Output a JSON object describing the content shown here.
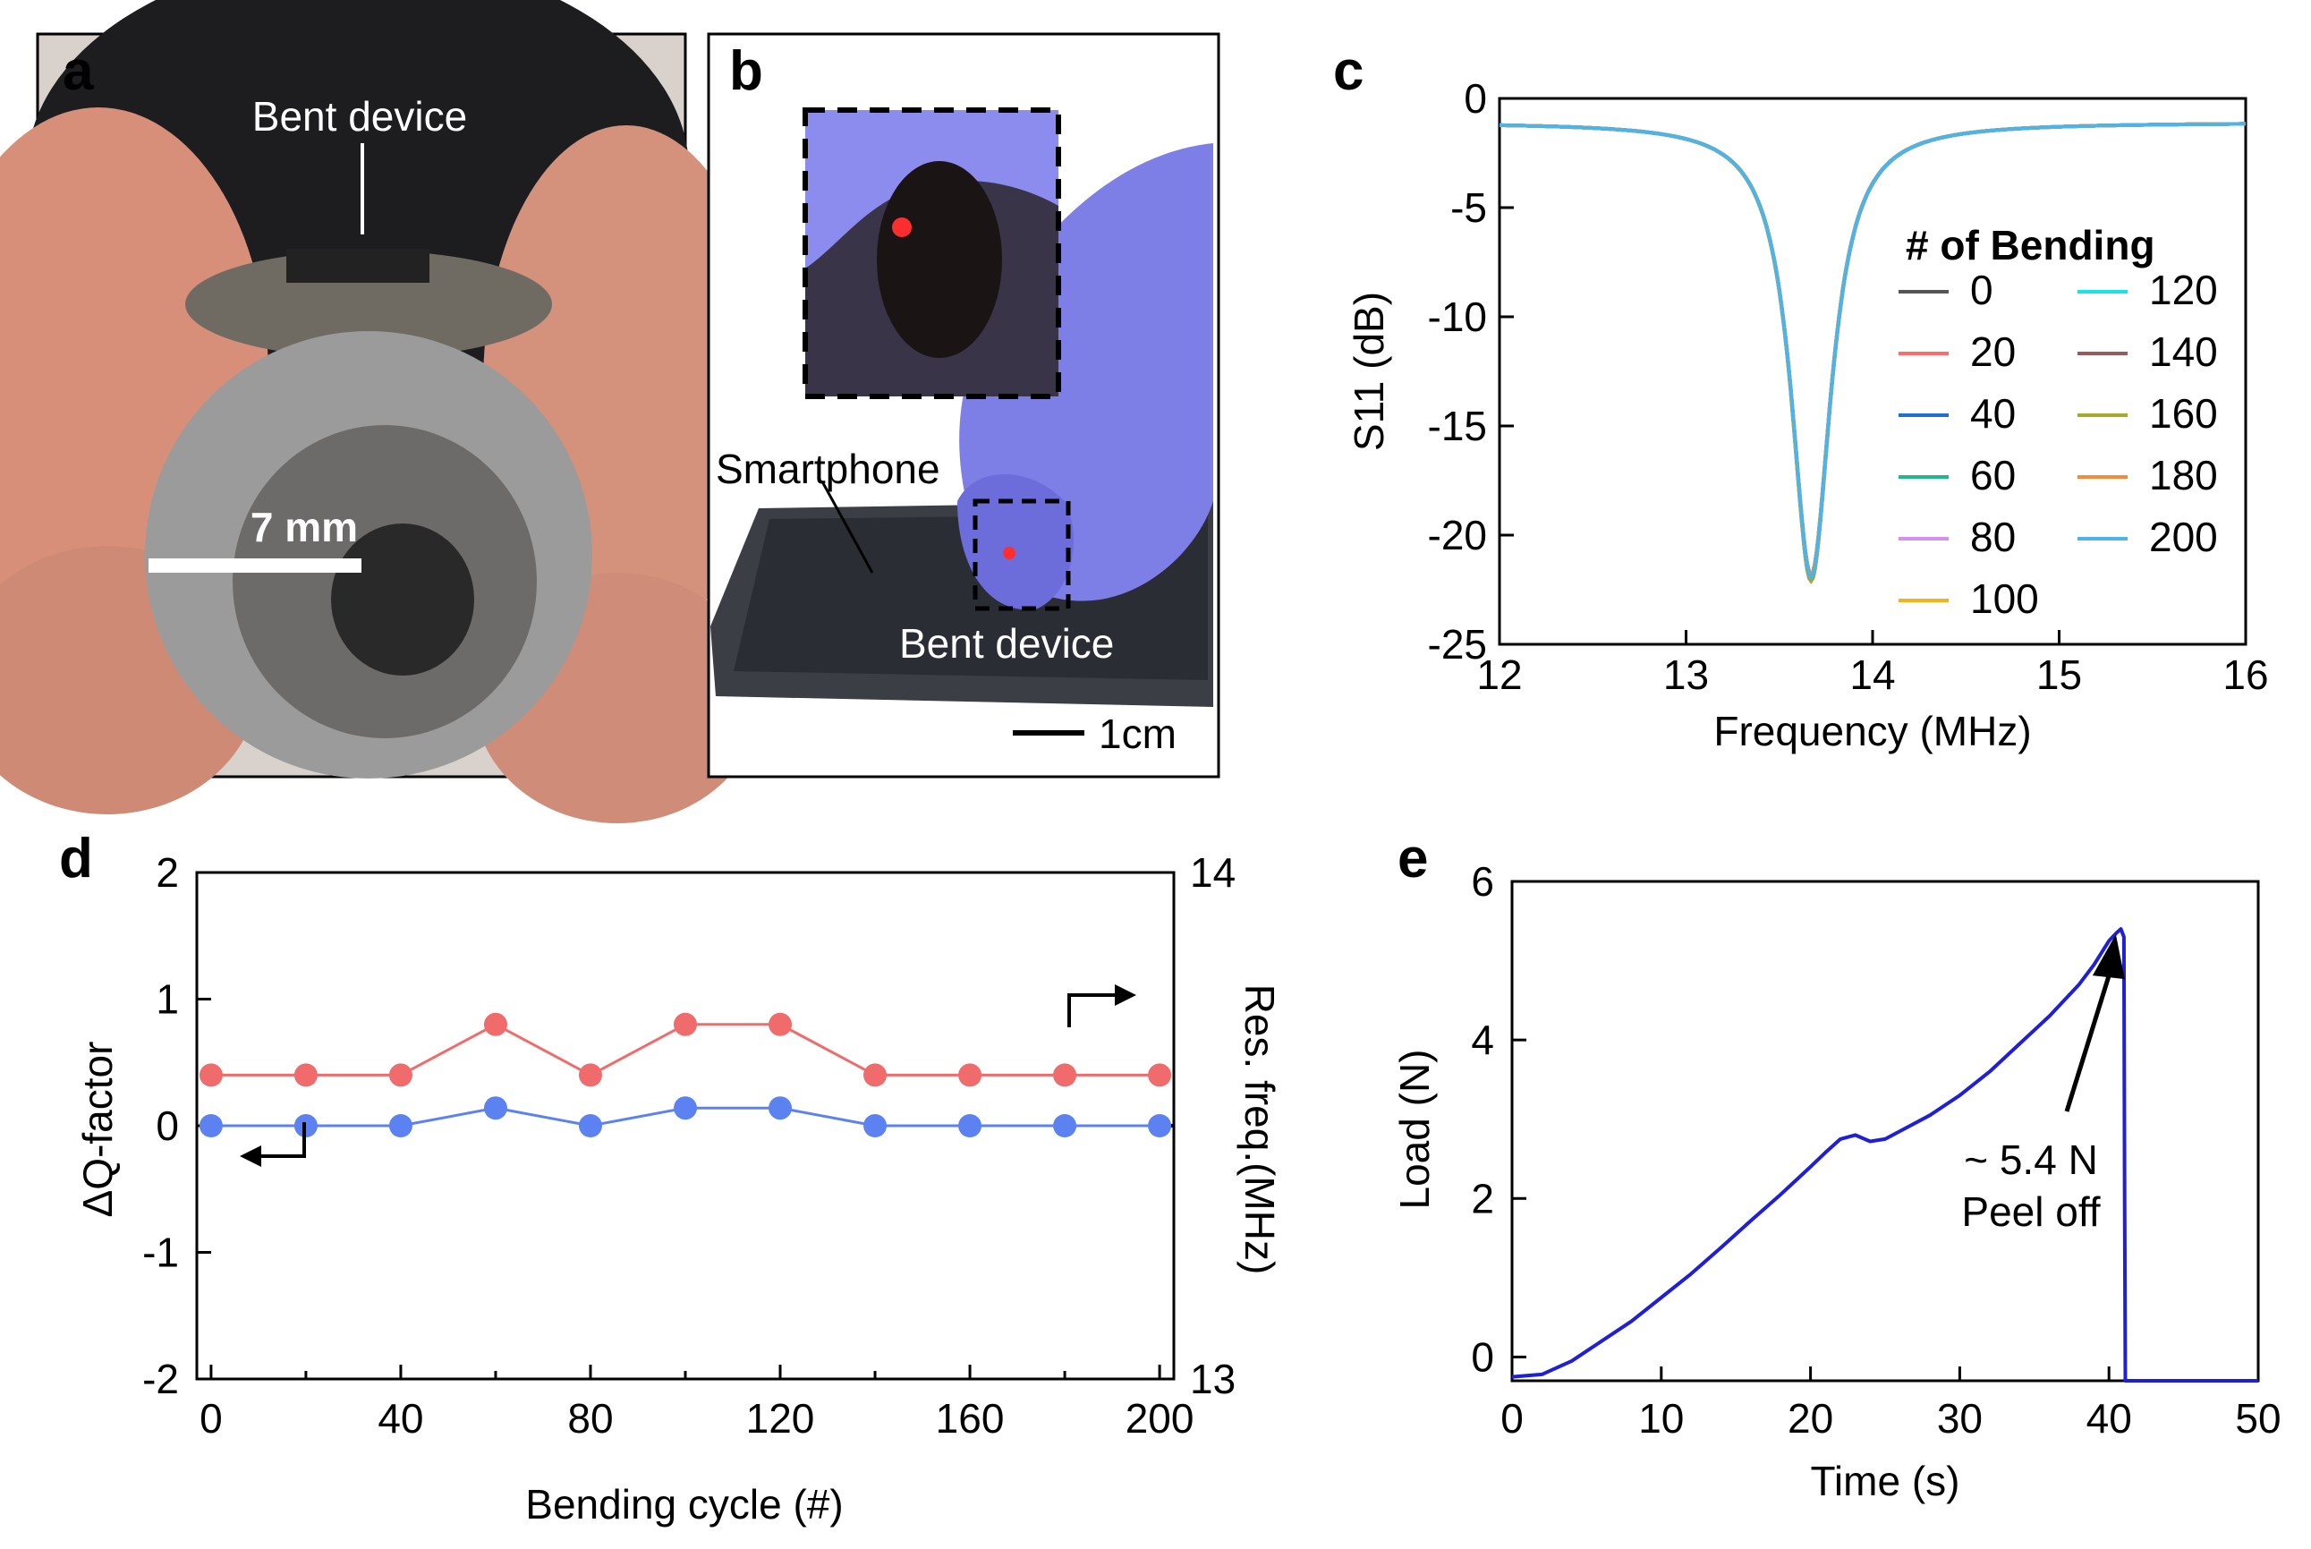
{
  "panels": {
    "a": {
      "letter": "a",
      "label_device": "Bent device",
      "scale_label": "7 mm"
    },
    "b": {
      "letter": "b",
      "label_phone": "Smartphone",
      "label_device": "Bent device",
      "scale_label": "1cm"
    },
    "c": {
      "letter": "c"
    },
    "d": {
      "letter": "d"
    },
    "e": {
      "letter": "e"
    }
  },
  "colors": {
    "red_series": "#f06b6b",
    "blue_series": "#5b82f0",
    "load_curve": "#1f1fd6",
    "glove": "#7d7ee6",
    "steel": "#8d8d8d",
    "skin": "#d79a85"
  },
  "chart_data": [
    {
      "id": "c",
      "type": "line",
      "title": "",
      "xlabel": "Frequency (MHz)",
      "ylabel": "S11 (dB)",
      "xlim": [
        12,
        16
      ],
      "ylim": [
        -25,
        0
      ],
      "xticks": [
        12,
        13,
        14,
        15,
        16
      ],
      "yticks": [
        0,
        -5,
        -10,
        -15,
        -20,
        -25
      ],
      "legend_title": "# of Bending",
      "legend_position": "right",
      "resonance": {
        "center_mhz": 13.67,
        "min_db": -21.8,
        "baseline_db": -1.1,
        "half_width_mhz": 0.13
      },
      "series": [
        {
          "name": "0",
          "color": "#555555"
        },
        {
          "name": "20",
          "color": "#ff6a6a"
        },
        {
          "name": "40",
          "color": "#1f6fd6"
        },
        {
          "name": "60",
          "color": "#22b88f"
        },
        {
          "name": "80",
          "color": "#d48ff2"
        },
        {
          "name": "100",
          "color": "#f2b21c"
        },
        {
          "name": "120",
          "color": "#19e4e4"
        },
        {
          "name": "140",
          "color": "#9b5a5a"
        },
        {
          "name": "160",
          "color": "#a8a82a"
        },
        {
          "name": "180",
          "color": "#f58a3a"
        },
        {
          "name": "200",
          "color": "#4cb4e8"
        }
      ]
    },
    {
      "id": "d",
      "type": "line",
      "title": "",
      "xlabel": "Bending cycle (#)",
      "ylabel": "ΔQ-factor",
      "y2label": "Res. freq.(MHz)",
      "xlim": [
        -3,
        203
      ],
      "ylim": [
        -2,
        2
      ],
      "y2lim": [
        13,
        14
      ],
      "xticks": [
        0,
        40,
        80,
        120,
        160,
        200
      ],
      "yticks": [
        2,
        1,
        0,
        -1,
        -2
      ],
      "y2ticks": [
        14,
        13
      ],
      "x": [
        0,
        20,
        40,
        60,
        80,
        100,
        120,
        140,
        160,
        180,
        200
      ],
      "series": [
        {
          "name": "Res. freq.",
          "axis": "right",
          "color": "#f06b6b",
          "values": [
            13.6,
            13.6,
            13.6,
            13.7,
            13.6,
            13.7,
            13.7,
            13.6,
            13.6,
            13.6,
            13.6
          ]
        },
        {
          "name": "ΔQ-factor",
          "axis": "left",
          "color": "#5b82f0",
          "values": [
            0,
            0,
            0,
            0.14,
            0,
            0.14,
            0.14,
            0,
            0,
            0,
            0
          ]
        }
      ]
    },
    {
      "id": "e",
      "type": "line",
      "title": "",
      "xlabel": "Time (s)",
      "ylabel": "Load (N)",
      "xlim": [
        0,
        50
      ],
      "ylim": [
        -0.3,
        6
      ],
      "xticks": [
        0,
        10,
        20,
        30,
        40,
        50
      ],
      "yticks": [
        0,
        2,
        4,
        6
      ],
      "x": [
        0,
        2,
        4,
        6,
        8,
        10,
        12,
        14,
        16,
        18,
        20,
        21,
        22,
        23,
        24,
        25,
        26,
        28,
        30,
        32,
        34,
        36,
        38,
        39,
        40,
        40.5,
        40.8,
        41.0,
        41.05,
        41.1,
        43,
        45,
        48,
        50
      ],
      "values": [
        -0.25,
        -0.22,
        -0.05,
        0.2,
        0.45,
        0.75,
        1.05,
        1.38,
        1.72,
        2.05,
        2.4,
        2.58,
        2.75,
        2.8,
        2.72,
        2.75,
        2.85,
        3.05,
        3.3,
        3.6,
        3.95,
        4.3,
        4.7,
        4.95,
        5.25,
        5.35,
        5.4,
        5.3,
        2.0,
        -0.3,
        -0.3,
        -0.3,
        -0.3,
        -0.3
      ],
      "annotation": {
        "line1": "~ 5.4 N",
        "line2": "Peel off",
        "x": 40.7,
        "y": 5.4
      }
    }
  ]
}
